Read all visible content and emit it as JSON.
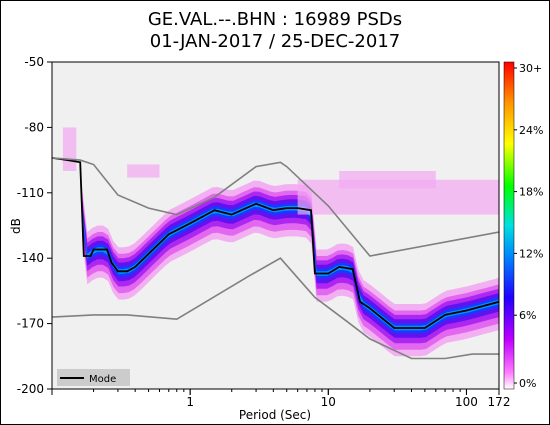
{
  "chart_data": {
    "type": "heatmap",
    "title": "GE.VAL.--.BHN : 16989 PSDs",
    "subtitle": "01-JAN-2017 / 25-DEC-2017",
    "xlabel": "Period (Sec)",
    "ylabel": "dB",
    "x_scale": "log",
    "xlim": [
      0.1,
      172
    ],
    "ylim": [
      -200,
      -50
    ],
    "x_ticks": [
      {
        "value": 1,
        "label": "1"
      },
      {
        "value": 10,
        "label": "10"
      },
      {
        "value": 100,
        "label": "100"
      },
      {
        "value": 172,
        "label": "172"
      }
    ],
    "y_ticks": [
      -50,
      -80,
      -110,
      -140,
      -170,
      -200
    ],
    "colorbar": {
      "labels": [
        "30+",
        "24%",
        "18%",
        "12%",
        "6%",
        "0%"
      ],
      "colors": [
        "#ff0000",
        "#ffaa00",
        "#ffff00",
        "#00ff00",
        "#00ffff",
        "#0000ff",
        "#ff00ff",
        "#ffffff"
      ]
    },
    "legend": {
      "label": "Mode",
      "position": "bottom-left"
    },
    "series": [
      {
        "name": "Mode",
        "x": [
          0.1,
          0.13,
          0.16,
          0.17,
          0.19,
          0.2,
          0.25,
          0.27,
          0.3,
          0.35,
          0.4,
          0.5,
          0.7,
          1,
          1.5,
          2,
          3,
          4,
          5,
          6,
          7.5,
          8,
          9,
          10,
          12,
          15,
          17,
          20,
          30,
          40,
          50,
          70,
          100,
          172
        ],
        "y": [
          -94,
          -95,
          -96,
          -139,
          -139,
          -136,
          -136,
          -142,
          -146,
          -146,
          -144,
          -138,
          -129,
          -124,
          -118,
          -120,
          -115,
          -118,
          -117,
          -117,
          -118,
          -147,
          -147,
          -147,
          -144,
          -145,
          -160,
          -163,
          -172,
          -172,
          -172,
          -166,
          -164,
          -160
        ]
      },
      {
        "name": "",
        "x": [
          0.1,
          0.16,
          0.2,
          0.3,
          0.5,
          0.8,
          1.5,
          3,
          4.5,
          5,
          10,
          20,
          172
        ],
        "y": [
          -94,
          -95,
          -97,
          -111,
          -117,
          -120,
          -112,
          -98,
          -96,
          -98,
          -116,
          -139,
          -128
        ]
      },
      {
        "name": "",
        "x": [
          0.1,
          0.2,
          0.35,
          0.8,
          2.7,
          4.5,
          8,
          13,
          20,
          40,
          70,
          110,
          172
        ],
        "y": [
          -167,
          -166,
          -166,
          -168,
          -148,
          -140,
          -158,
          -168,
          -177,
          -186,
          -186,
          -184,
          -184
        ]
      }
    ]
  }
}
